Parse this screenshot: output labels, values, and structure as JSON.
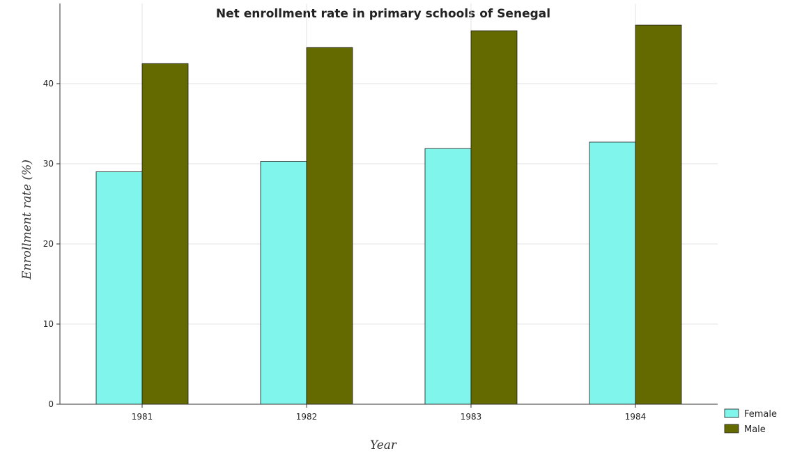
{
  "chart_data": {
    "type": "bar",
    "title": "Net enrollment rate in primary schools of Senegal",
    "xlabel": "Year",
    "ylabel": "Enrollment rate (%)",
    "categories": [
      "1981",
      "1982",
      "1983",
      "1984"
    ],
    "series": [
      {
        "name": "Female",
        "color": "#7ff5eb",
        "values": [
          29.0,
          30.3,
          31.9,
          32.7
        ]
      },
      {
        "name": "Male",
        "color": "#656a00",
        "values": [
          42.5,
          44.5,
          46.6,
          47.3
        ]
      }
    ],
    "ylim": [
      0,
      50
    ],
    "yticks": [
      0,
      10,
      20,
      30,
      40
    ],
    "grid": true,
    "legend_position": "bottom-right"
  }
}
